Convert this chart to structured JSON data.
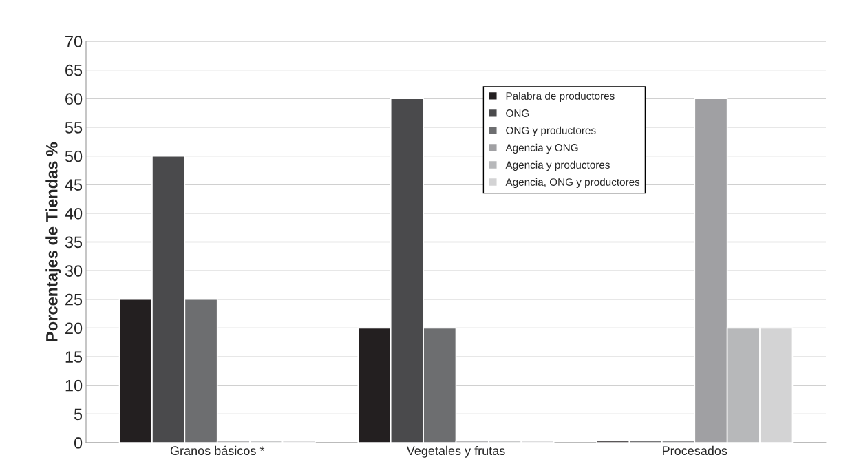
{
  "chart_data": {
    "type": "bar",
    "ylabel": "Porcentajes de Tiendas %",
    "categories": [
      "Granos básicos *",
      "Vegetales y frutas",
      "Procesados"
    ],
    "series": [
      {
        "name": "Palabra de productores",
        "color": "#231f20",
        "values": [
          25,
          20,
          0.3
        ]
      },
      {
        "name": "ONG",
        "color": "#4a4a4c",
        "values": [
          50,
          60,
          0.3
        ]
      },
      {
        "name": "ONG y productores",
        "color": "#6d6e70",
        "values": [
          25,
          20,
          0.3
        ]
      },
      {
        "name": "Agencia y ONG",
        "color": "#a0a0a3",
        "values": [
          0.3,
          0.3,
          60
        ]
      },
      {
        "name": "Agencia y productores",
        "color": "#b7b8ba",
        "values": [
          0.3,
          0.3,
          20
        ]
      },
      {
        "name": "Agencia, ONG y productores",
        "color": "#d3d3d4",
        "values": [
          0.3,
          0.3,
          20
        ]
      }
    ],
    "ylim": [
      0,
      70
    ],
    "yticks": [
      0,
      5,
      10,
      15,
      20,
      25,
      30,
      35,
      40,
      45,
      50,
      55,
      60,
      65,
      70
    ],
    "grid": "y",
    "legend": "top"
  }
}
